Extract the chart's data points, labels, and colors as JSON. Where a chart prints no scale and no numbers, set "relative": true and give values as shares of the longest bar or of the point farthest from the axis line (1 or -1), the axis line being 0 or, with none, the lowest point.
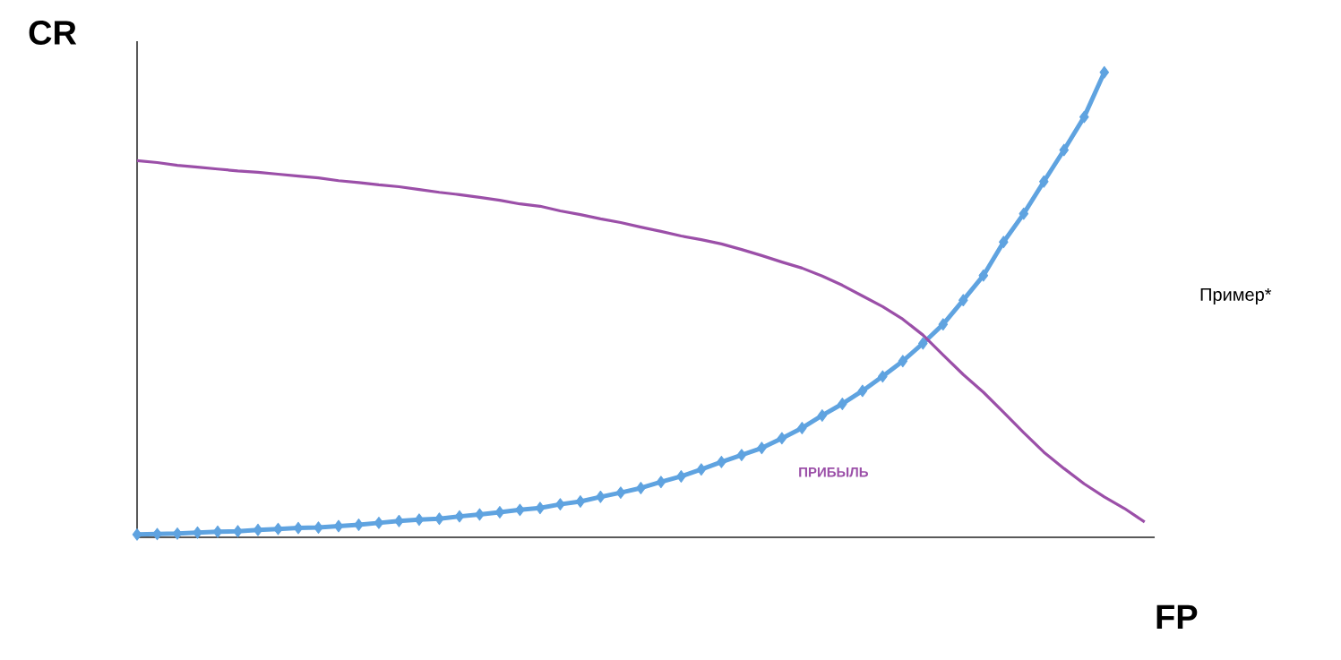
{
  "chart_data": {
    "type": "line",
    "relative": true,
    "xlabel": "FP",
    "ylabel": "CR",
    "annotations": [
      "Пример*"
    ],
    "categories": [
      null,
      null,
      null,
      null,
      null,
      null,
      null,
      null,
      null,
      null,
      null,
      null,
      null,
      null,
      null,
      null,
      null,
      null,
      null,
      null,
      null,
      null,
      null,
      null,
      null,
      null,
      null,
      null,
      null,
      null,
      null,
      null,
      null,
      null,
      null,
      null,
      null,
      null,
      null,
      null,
      null,
      null,
      null,
      null,
      null,
      null,
      null,
      null,
      null,
      null,
      null
    ],
    "series": [
      {
        "color": "#5fa3e0",
        "marker": "diamond",
        "values": [
          0.006,
          0.007,
          0.008,
          0.01,
          0.012,
          0.013,
          0.016,
          0.018,
          0.02,
          0.021,
          0.024,
          0.027,
          0.031,
          0.035,
          0.038,
          0.04,
          0.045,
          0.049,
          0.054,
          0.059,
          0.063,
          0.071,
          0.077,
          0.087,
          0.096,
          0.106,
          0.119,
          0.131,
          0.146,
          0.162,
          0.177,
          0.192,
          0.213,
          0.235,
          0.262,
          0.287,
          0.315,
          0.346,
          0.379,
          0.417,
          0.458,
          0.51,
          0.563,
          0.635,
          0.696,
          0.765,
          0.833,
          0.904,
          1.0,
          null,
          null
        ]
      },
      {
        "name": "ПРИБЫЛЬ",
        "color": "#9b4fa8",
        "marker": "none",
        "values": [
          0.81,
          0.806,
          0.8,
          0.796,
          0.792,
          0.788,
          0.785,
          0.781,
          0.777,
          0.773,
          0.767,
          0.763,
          0.758,
          0.754,
          0.748,
          0.742,
          0.737,
          0.731,
          0.725,
          0.717,
          0.712,
          0.702,
          0.694,
          0.685,
          0.677,
          0.667,
          0.658,
          0.648,
          0.64,
          0.631,
          0.619,
          0.606,
          0.592,
          0.579,
          0.562,
          0.542,
          0.519,
          0.496,
          0.469,
          0.435,
          0.392,
          0.35,
          0.312,
          0.269,
          0.225,
          0.183,
          0.148,
          0.115,
          0.087,
          0.062,
          0.033
        ]
      }
    ]
  }
}
